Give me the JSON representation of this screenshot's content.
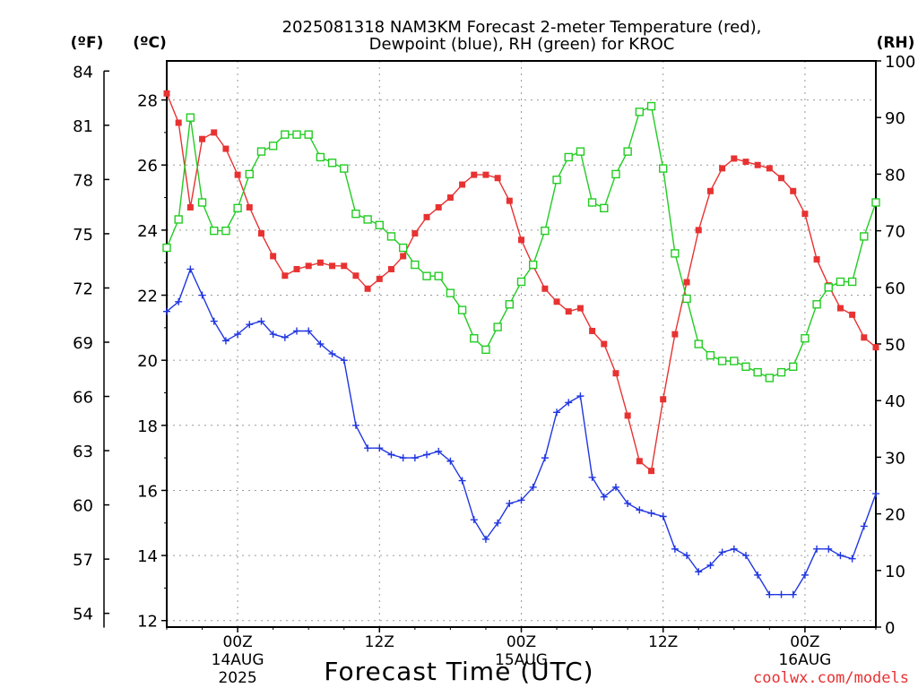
{
  "title_line1": "2025081318 NAM3KM Forecast 2-meter Temperature (red),",
  "title_line2": "Dewpoint (blue), RH (green) for KROC",
  "unit_f": "(ºF)",
  "unit_c": "(ºC)",
  "unit_rh": "(RH)",
  "xlabel": "Forecast Time (UTC)",
  "credit": "coolwx.com/models",
  "chart_data": {
    "type": "line",
    "x_range": [
      -6,
      54
    ],
    "x_note": "x values are forecast hours after 2025-08-13 18Z",
    "celsius_axis": {
      "range": [
        11.8,
        29.2
      ],
      "ticks": [
        12,
        14,
        16,
        18,
        20,
        22,
        24,
        26,
        28
      ]
    },
    "fahrenheit_axis": {
      "ticks": [
        54,
        57,
        60,
        63,
        66,
        69,
        72,
        75,
        78,
        81,
        84
      ]
    },
    "rh_axis": {
      "range": [
        0,
        100
      ],
      "ticks": [
        0,
        10,
        20,
        30,
        40,
        50,
        60,
        70,
        80,
        90,
        100
      ]
    },
    "x_ticks": [
      {
        "x": 0,
        "label": "00Z",
        "sub1": "14AUG",
        "sub2": "2025"
      },
      {
        "x": 12,
        "label": "12Z",
        "sub1": "",
        "sub2": ""
      },
      {
        "x": 24,
        "label": "00Z",
        "sub1": "15AUG",
        "sub2": ""
      },
      {
        "x": 36,
        "label": "12Z",
        "sub1": "",
        "sub2": ""
      },
      {
        "x": 48,
        "label": "00Z",
        "sub1": "16AUG",
        "sub2": ""
      }
    ],
    "grid": true,
    "series": [
      {
        "color": "#e83232",
        "marker": "filled-square",
        "axis": "celsius",
        "x": [
          -6,
          -5,
          -4,
          -3,
          -2,
          -1,
          0,
          1,
          2,
          3,
          4,
          5,
          6,
          7,
          8,
          9,
          10,
          11,
          12,
          13,
          14,
          15,
          16,
          17,
          18,
          19,
          20,
          21,
          22,
          23,
          24,
          25,
          26,
          27,
          28,
          29,
          30,
          31,
          32,
          33,
          34,
          35,
          36,
          37,
          38,
          39,
          40,
          41,
          42,
          43,
          44,
          45,
          46,
          47,
          48,
          49,
          50,
          51,
          52,
          53,
          54
        ],
        "values": [
          28.2,
          27.3,
          24.7,
          26.8,
          27.0,
          26.5,
          25.7,
          24.7,
          23.9,
          23.2,
          22.6,
          22.8,
          22.9,
          23.0,
          22.9,
          22.9,
          22.6,
          22.2,
          22.5,
          22.8,
          23.2,
          23.9,
          24.4,
          24.7,
          25.0,
          25.4,
          25.7,
          25.7,
          25.6,
          24.9,
          23.7,
          22.9,
          22.2,
          21.8,
          21.5,
          21.6,
          20.9,
          20.5,
          19.6,
          18.3,
          16.9,
          16.6,
          18.8,
          20.8,
          22.4,
          24.0,
          25.2,
          25.9,
          26.2,
          26.1,
          26.0,
          25.9,
          25.6,
          25.2,
          24.5,
          23.1,
          22.3,
          21.6,
          21.4,
          20.7,
          20.4
        ]
      },
      {
        "color": "#2036e0",
        "marker": "plus",
        "axis": "celsius",
        "x": [
          -6,
          -5,
          -4,
          -3,
          -2,
          -1,
          0,
          1,
          2,
          3,
          4,
          5,
          6,
          7,
          8,
          9,
          10,
          11,
          12,
          13,
          14,
          15,
          16,
          17,
          18,
          19,
          20,
          21,
          22,
          23,
          24,
          25,
          26,
          27,
          28,
          29,
          30,
          31,
          32,
          33,
          34,
          35,
          36,
          37,
          38,
          39,
          40,
          41,
          42,
          43,
          44,
          45,
          46,
          47,
          48,
          49,
          50,
          51,
          52,
          53,
          54
        ],
        "values": [
          21.5,
          21.8,
          22.8,
          22.0,
          21.2,
          20.6,
          20.8,
          21.1,
          21.2,
          20.8,
          20.7,
          20.9,
          20.9,
          20.5,
          20.2,
          20.0,
          18.0,
          17.3,
          17.3,
          17.1,
          17.0,
          17.0,
          17.1,
          17.2,
          16.9,
          16.3,
          15.1,
          14.5,
          15.0,
          15.6,
          15.7,
          16.1,
          17.0,
          18.4,
          18.7,
          18.9,
          16.4,
          15.8,
          16.1,
          15.6,
          15.4,
          15.3,
          15.2,
          14.2,
          14.0,
          13.5,
          13.7,
          14.1,
          14.2,
          14.0,
          13.4,
          12.8,
          12.8,
          12.8,
          13.4,
          14.2,
          14.2,
          14.0,
          13.9,
          14.9,
          15.9
        ]
      },
      {
        "color": "#22cc22",
        "marker": "open-square",
        "axis": "rh",
        "x": [
          -6,
          -5,
          -4,
          -3,
          -2,
          -1,
          0,
          1,
          2,
          3,
          4,
          5,
          6,
          7,
          8,
          9,
          10,
          11,
          12,
          13,
          14,
          15,
          16,
          17,
          18,
          19,
          20,
          21,
          22,
          23,
          24,
          25,
          26,
          27,
          28,
          29,
          30,
          31,
          32,
          33,
          34,
          35,
          36,
          37,
          38,
          39,
          40,
          41,
          42,
          43,
          44,
          45,
          46,
          47,
          48,
          49,
          50,
          51,
          52,
          53,
          54
        ],
        "values": [
          67,
          72,
          90,
          75,
          70,
          70,
          74,
          80,
          84,
          85,
          87,
          87,
          87,
          83,
          82,
          81,
          73,
          72,
          71,
          69,
          67,
          64,
          62,
          62,
          59,
          56,
          51,
          49,
          53,
          57,
          61,
          64,
          70,
          79,
          83,
          84,
          75,
          74,
          80,
          84,
          91,
          92,
          81,
          66,
          58,
          50,
          48,
          47,
          47,
          46,
          45,
          44,
          45,
          46,
          51,
          57,
          60,
          61,
          61,
          69,
          75
        ]
      }
    ]
  }
}
